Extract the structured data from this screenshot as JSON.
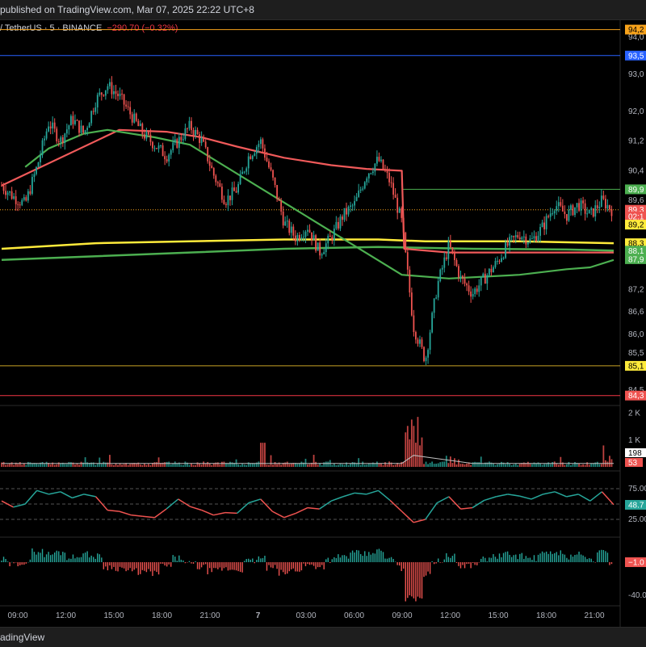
{
  "header": {
    "published_text": "published on TradingView.com, Mar 07, 2025 22:22 UTC+8",
    "symbol_text": "/ TetherUS · 5 · BINANCE",
    "change_text": "−290.70 (−0.32%)"
  },
  "footer": {
    "brand": "adingView"
  },
  "colors": {
    "bg": "#000000",
    "up": "#26a69a",
    "down": "#ef5350",
    "ema_red": "#f05a5a",
    "ema_green": "#4caf50",
    "yellow": "#ffeb3b",
    "orange_line": "#f7a21b",
    "blue_line": "#2962ff",
    "rsi_up": "#26a69a",
    "rsi_down": "#ef5350"
  },
  "chart_data": {
    "type": "candlestick",
    "symbol": "/ TetherUS · 5 · BINANCE",
    "interval": "5",
    "price_axis": {
      "ylim": [
        84.3,
        94.3
      ],
      "ticks": [
        {
          "label": "94,0",
          "value": 94.0
        },
        {
          "label": "93,0",
          "value": 93.0
        },
        {
          "label": "92,0",
          "value": 92.0
        },
        {
          "label": "91,2",
          "value": 91.2
        },
        {
          "label": "90,4",
          "value": 90.4
        },
        {
          "label": "89,6",
          "value": 89.6
        },
        {
          "label": "88,4",
          "value": 88.4
        },
        {
          "label": "87,2",
          "value": 87.2
        },
        {
          "label": "86,6",
          "value": 86.6
        },
        {
          "label": "86,0",
          "value": 86.0
        },
        {
          "label": "85,5",
          "value": 85.5
        },
        {
          "label": "84,5",
          "value": 84.5
        }
      ]
    },
    "price_tags": [
      {
        "label": "94,2",
        "value": 94.2,
        "bg": "#f7a21b",
        "fg": "#000000"
      },
      {
        "label": "93,5",
        "value": 93.5,
        "bg": "#2962ff",
        "fg": "#ffffff"
      },
      {
        "label": "89,9",
        "value": 89.9,
        "bg": "#4caf50",
        "fg": "#ffffff"
      },
      {
        "label": "89,3",
        "value": 89.35,
        "bg": "#ef5350",
        "fg": "#ffffff"
      },
      {
        "label": "02:1",
        "value": 89.17,
        "bg": "#ef5350",
        "fg": "#ffffff"
      },
      {
        "label": "89,2",
        "value": 88.95,
        "bg": "#ffeb3b",
        "fg": "#000000"
      },
      {
        "label": "88,3",
        "value": 88.45,
        "bg": "#ffeb3b",
        "fg": "#000000"
      },
      {
        "label": "88,1",
        "value": 88.25,
        "bg": "#4caf50",
        "fg": "#ffffff"
      },
      {
        "label": "87,9",
        "value": 88.02,
        "bg": "#4caf50",
        "fg": "#ffffff"
      },
      {
        "label": "85,1",
        "value": 85.15,
        "bg": "#ffeb3b",
        "fg": "#000000"
      },
      {
        "label": "84,3",
        "value": 84.35,
        "bg": "#ef5350",
        "fg": "#ffffff"
      }
    ],
    "horizontal_lines": [
      {
        "value": 94.2,
        "color": "#f7a21b"
      },
      {
        "value": 93.5,
        "color": "#2962ff"
      },
      {
        "value": 85.15,
        "color": "#c9a227"
      },
      {
        "value": 84.35,
        "color": "#f23645"
      }
    ],
    "time_axis": [
      "09:00",
      "12:00",
      "15:00",
      "18:00",
      "21:00",
      "7",
      "03:00",
      "06:00",
      "09:00",
      "12:00",
      "15:00",
      "18:00",
      "21:00"
    ],
    "price_path": [
      [
        0,
        90.0
      ],
      [
        1,
        89.7
      ],
      [
        2,
        89.5
      ],
      [
        3,
        90.5
      ],
      [
        4,
        91.7
      ],
      [
        5,
        91.2
      ],
      [
        6,
        91.8
      ],
      [
        7,
        91.4
      ],
      [
        8,
        92.3
      ],
      [
        9,
        92.7
      ],
      [
        10,
        92.4
      ],
      [
        11,
        91.9
      ],
      [
        12,
        91.4
      ],
      [
        13,
        91.1
      ],
      [
        14,
        90.8
      ],
      [
        15,
        91.2
      ],
      [
        16,
        91.6
      ],
      [
        17,
        91.2
      ],
      [
        18,
        90.3
      ],
      [
        19,
        89.6
      ],
      [
        20,
        89.9
      ],
      [
        21,
        90.8
      ],
      [
        22,
        91.2
      ],
      [
        23,
        90.2
      ],
      [
        24,
        89.0
      ],
      [
        25,
        88.6
      ],
      [
        26,
        88.9
      ],
      [
        27,
        88.2
      ],
      [
        28,
        88.6
      ],
      [
        29,
        89.2
      ],
      [
        30,
        89.5
      ],
      [
        31,
        90.3
      ],
      [
        32,
        90.7
      ],
      [
        33,
        90.1
      ],
      [
        34,
        89.0
      ],
      [
        35,
        86.2
      ],
      [
        36,
        85.3
      ],
      [
        37,
        87.3
      ],
      [
        38,
        88.4
      ],
      [
        39,
        87.5
      ],
      [
        40,
        87.1
      ],
      [
        41,
        87.5
      ],
      [
        42,
        87.9
      ],
      [
        43,
        88.4
      ],
      [
        44,
        88.7
      ],
      [
        45,
        88.5
      ],
      [
        46,
        88.9
      ],
      [
        47,
        89.5
      ],
      [
        48,
        89.2
      ],
      [
        49,
        89.5
      ],
      [
        50,
        89.2
      ],
      [
        51,
        89.6
      ],
      [
        52,
        89.3
      ]
    ],
    "ema_red": [
      [
        0,
        90.0
      ],
      [
        10,
        91.5
      ],
      [
        14,
        91.45
      ],
      [
        17,
        91.3
      ],
      [
        20,
        91.05
      ],
      [
        24,
        90.75
      ],
      [
        28,
        90.55
      ],
      [
        31,
        90.45
      ],
      [
        34,
        90.4
      ],
      [
        34.2,
        88.3
      ],
      [
        38,
        88.2
      ],
      [
        44,
        88.2
      ],
      [
        52,
        88.2
      ]
    ],
    "ema_green_fast": [
      [
        2,
        90.5
      ],
      [
        4,
        91.0
      ],
      [
        7,
        91.4
      ],
      [
        9,
        91.5
      ],
      [
        13,
        91.3
      ],
      [
        16,
        91.1
      ],
      [
        34,
        87.6
      ],
      [
        38,
        87.5
      ],
      [
        44,
        87.6
      ],
      [
        48,
        87.75
      ],
      [
        50,
        87.8
      ],
      [
        52,
        88.0
      ]
    ],
    "ema_yellow": [
      [
        0,
        88.3
      ],
      [
        8,
        88.45
      ],
      [
        16,
        88.5
      ],
      [
        24,
        88.55
      ],
      [
        32,
        88.55
      ],
      [
        36,
        88.5
      ],
      [
        44,
        88.5
      ],
      [
        52,
        88.45
      ]
    ],
    "ema_green_slow": [
      [
        0,
        88.0
      ],
      [
        8,
        88.1
      ],
      [
        16,
        88.2
      ],
      [
        24,
        88.3
      ],
      [
        32,
        88.35
      ],
      [
        40,
        88.3
      ],
      [
        48,
        88.28
      ],
      [
        52,
        88.25
      ]
    ],
    "volume": {
      "ticks": [
        {
          "label": "2 K",
          "value": 2000
        },
        {
          "label": "1 K",
          "value": 1000
        }
      ],
      "last_tag": "198",
      "last_tag2": "53"
    },
    "rsi": {
      "ticks": [
        {
          "label": "75.00",
          "value": 75
        },
        {
          "label": "25.00",
          "value": 25
        }
      ],
      "last_tag": "48.7",
      "path": [
        [
          0,
          55
        ],
        [
          1,
          45
        ],
        [
          2,
          50
        ],
        [
          3,
          72
        ],
        [
          4,
          66
        ],
        [
          5,
          70
        ],
        [
          6,
          60
        ],
        [
          7,
          66
        ],
        [
          8,
          62
        ],
        [
          9,
          40
        ],
        [
          10,
          38
        ],
        [
          11,
          32
        ],
        [
          12,
          30
        ],
        [
          13,
          28
        ],
        [
          14,
          42
        ],
        [
          15,
          58
        ],
        [
          16,
          46
        ],
        [
          17,
          40
        ],
        [
          18,
          32
        ],
        [
          19,
          36
        ],
        [
          20,
          35
        ],
        [
          21,
          52
        ],
        [
          22,
          58
        ],
        [
          23,
          38
        ],
        [
          24,
          28
        ],
        [
          25,
          35
        ],
        [
          26,
          44
        ],
        [
          27,
          42
        ],
        [
          28,
          55
        ],
        [
          29,
          62
        ],
        [
          30,
          68
        ],
        [
          31,
          66
        ],
        [
          32,
          72
        ],
        [
          33,
          56
        ],
        [
          34,
          38
        ],
        [
          35,
          20
        ],
        [
          36,
          25
        ],
        [
          37,
          52
        ],
        [
          38,
          62
        ],
        [
          39,
          42
        ],
        [
          40,
          44
        ],
        [
          41,
          56
        ],
        [
          42,
          62
        ],
        [
          43,
          66
        ],
        [
          44,
          63
        ],
        [
          45,
          58
        ],
        [
          46,
          66
        ],
        [
          47,
          70
        ],
        [
          48,
          62
        ],
        [
          49,
          66
        ],
        [
          50,
          55
        ],
        [
          51,
          70
        ],
        [
          52,
          49
        ]
      ]
    },
    "oscillator": {
      "ticks": [
        {
          "label": "-40.0",
          "value": -40
        }
      ],
      "last_tag": "−1.0"
    }
  }
}
